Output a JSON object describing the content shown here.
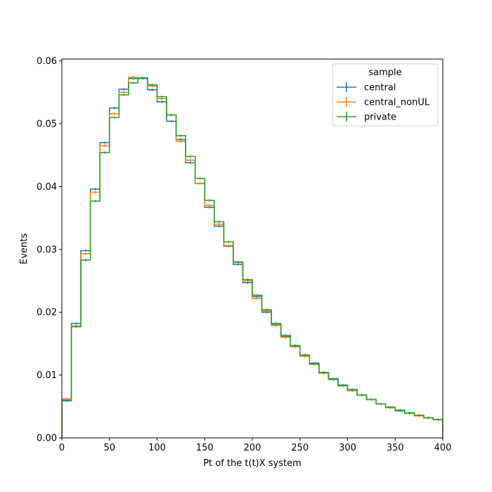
{
  "chart_data": {
    "type": "line",
    "drawstyle": "steps",
    "xlabel": "Pt of the t(t)X system",
    "ylabel": "Events",
    "xlim": [
      0,
      400
    ],
    "ylim": [
      0,
      0.0603
    ],
    "xticks": [
      0,
      50,
      100,
      150,
      200,
      250,
      300,
      350,
      400
    ],
    "xtick_labels": [
      "0",
      "50",
      "100",
      "150",
      "200",
      "250",
      "300",
      "350",
      "400"
    ],
    "yticks": [
      0,
      0.01,
      0.02,
      0.03,
      0.04,
      0.05,
      0.06
    ],
    "ytick_labels": [
      "0.00",
      "0.01",
      "0.02",
      "0.03",
      "0.04",
      "0.05",
      "0.06"
    ],
    "grid": false,
    "legend": {
      "title": "sample",
      "placement": "top-right"
    },
    "bin_edges": [
      0,
      10,
      20,
      30,
      40,
      50,
      60,
      70,
      80,
      90,
      100,
      110,
      120,
      130,
      140,
      150,
      160,
      170,
      180,
      190,
      200,
      210,
      220,
      230,
      240,
      250,
      260,
      270,
      280,
      290,
      300,
      310,
      320,
      330,
      340,
      350,
      360,
      370,
      380,
      390,
      400
    ],
    "series": [
      {
        "name": "central",
        "color": "#1f77b4",
        "values": [
          0.006,
          0.0182,
          0.0298,
          0.0396,
          0.047,
          0.0525,
          0.0555,
          0.0572,
          0.0573,
          0.0554,
          0.0535,
          0.0504,
          0.0475,
          0.0438,
          0.0405,
          0.0367,
          0.0337,
          0.0305,
          0.0276,
          0.0247,
          0.0225,
          0.02,
          0.0181,
          0.0162,
          0.0146,
          0.0131,
          0.0119,
          0.0104,
          0.0094,
          0.0083,
          0.0076,
          0.0068,
          0.0061,
          0.0054,
          0.0048,
          0.0043,
          0.0039,
          0.0035,
          0.0032,
          0.0029
        ]
      },
      {
        "name": "central_nonUL",
        "color": "#ff7f0e",
        "values": [
          0.0062,
          0.0178,
          0.0293,
          0.0391,
          0.0465,
          0.0516,
          0.055,
          0.0574,
          0.0572,
          0.056,
          0.054,
          0.0514,
          0.0472,
          0.0442,
          0.0405,
          0.037,
          0.034,
          0.0306,
          0.0279,
          0.025,
          0.0222,
          0.0202,
          0.0179,
          0.016,
          0.0145,
          0.013,
          0.0117,
          0.0103,
          0.0093,
          0.0084,
          0.0075,
          0.0068,
          0.0061,
          0.0054,
          0.0048,
          0.0044,
          0.0039,
          0.0035,
          0.0032,
          0.0029
        ]
      },
      {
        "name": "private",
        "color": "#2ca02c",
        "values": [
          0.0059,
          0.0177,
          0.0283,
          0.0377,
          0.0454,
          0.051,
          0.0546,
          0.0565,
          0.0572,
          0.0562,
          0.0543,
          0.0514,
          0.0481,
          0.0448,
          0.0413,
          0.0378,
          0.0344,
          0.0312,
          0.028,
          0.0252,
          0.0227,
          0.0204,
          0.0182,
          0.0163,
          0.0147,
          0.0132,
          0.0118,
          0.0104,
          0.0093,
          0.0084,
          0.0077,
          0.0068,
          0.0061,
          0.0054,
          0.0049,
          0.0044,
          0.004,
          0.0036,
          0.0032,
          0.0029
        ]
      }
    ]
  }
}
